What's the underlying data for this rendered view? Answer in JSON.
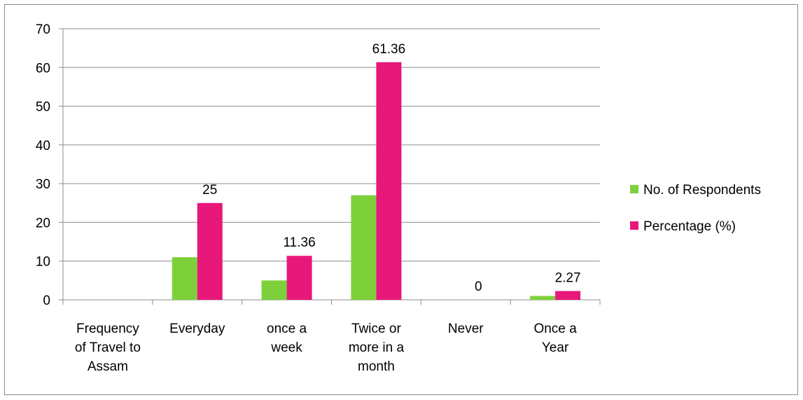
{
  "chart_data": {
    "type": "bar",
    "categories": [
      [
        "Frequency",
        "of Travel to",
        "Assam"
      ],
      [
        "Everyday"
      ],
      [
        "once a",
        "week"
      ],
      [
        "Twice or",
        "more in a",
        "month"
      ],
      [
        "Never"
      ],
      [
        "Once a",
        "Year"
      ]
    ],
    "series": [
      {
        "name": "No. of Respondents",
        "color": "#7ed03b",
        "values": [
          null,
          11,
          5,
          27,
          0,
          1
        ],
        "data_labels": [
          null,
          null,
          null,
          null,
          null,
          null
        ]
      },
      {
        "name": "Percentage (%)",
        "color": "#e8177a",
        "values": [
          null,
          25,
          11.36,
          61.36,
          0,
          2.27
        ],
        "data_labels": [
          null,
          "25",
          "11.36",
          "61.36",
          "0",
          "2.27"
        ]
      }
    ],
    "y_ticks": [
      "0",
      "10",
      "20",
      "30",
      "40",
      "50",
      "60",
      "70"
    ],
    "ylim": [
      0,
      70
    ],
    "grid": true,
    "legend_position": "right"
  }
}
